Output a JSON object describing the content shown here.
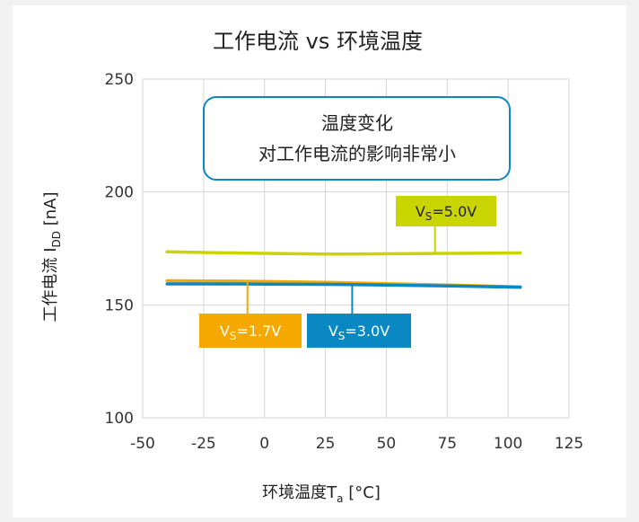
{
  "chart_data": {
    "type": "line",
    "title": "工作电流 vs 环境温度",
    "xlabel": {
      "main": "环境温度T",
      "sub": "a",
      "unit": " [°C]"
    },
    "ylabel": {
      "main": "工作电流 I",
      "sub": "DD",
      "unit": " [nA]"
    },
    "xlim": [
      -50,
      125
    ],
    "ylim": [
      100,
      250
    ],
    "x_ticks": [
      -50,
      -25,
      0,
      25,
      50,
      75,
      100,
      125
    ],
    "y_ticks": [
      100,
      150,
      200,
      250
    ],
    "x_tick_labels": [
      "-50",
      "-25",
      "0",
      "25",
      "50",
      "75",
      "100",
      "125"
    ],
    "y_tick_labels": [
      "100",
      "150",
      "200",
      "250"
    ],
    "grid": true,
    "annotation": {
      "line1": "温度变化",
      "line2": "对工作电流的影响非常小"
    },
    "series": [
      {
        "label_main": "V",
        "label_sub": "S",
        "label_value": "=5.0V",
        "color": "#c9d400",
        "x": [
          -40,
          -25,
          0,
          25,
          50,
          75,
          105
        ],
        "y": [
          173.5,
          173.2,
          172.8,
          172.5,
          172.6,
          172.8,
          173.0
        ],
        "label_anchor": {
          "x": 70,
          "y": 173.0
        }
      },
      {
        "label_main": "V",
        "label_sub": "S",
        "label_value": "=1.7V",
        "color": "#f5a800",
        "x": [
          -40,
          -25,
          0,
          25,
          50,
          75,
          105
        ],
        "y": [
          160.7,
          160.6,
          160.4,
          160.0,
          159.4,
          158.8,
          158.0
        ],
        "label_anchor": {
          "x": -7,
          "y": 160.5
        }
      },
      {
        "label_main": "V",
        "label_sub": "S",
        "label_value": "=3.0V",
        "color": "#0a88c4",
        "x": [
          -40,
          -25,
          0,
          25,
          50,
          75,
          105
        ],
        "y": [
          159.3,
          159.3,
          159.2,
          159.1,
          158.8,
          158.4,
          157.8
        ],
        "label_anchor": {
          "x": 36,
          "y": 159.0
        }
      }
    ]
  }
}
